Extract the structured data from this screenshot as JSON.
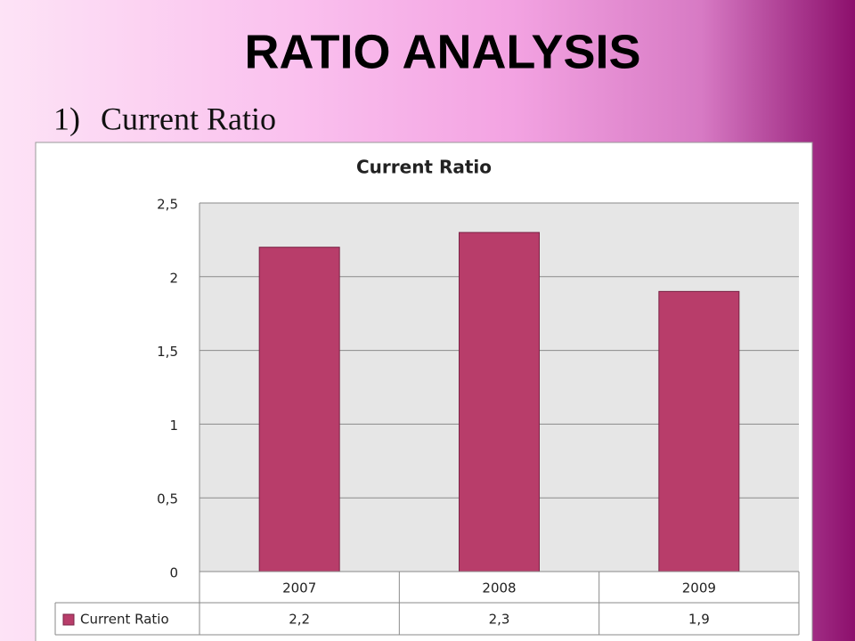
{
  "slide": {
    "title": "RATIO ANALYSIS",
    "list_number": "1)",
    "list_text": "Current Ratio"
  },
  "chart_data": {
    "type": "bar",
    "title": "Current Ratio",
    "categories": [
      "2007",
      "2008",
      "2009"
    ],
    "series": [
      {
        "name": "Current Ratio",
        "color": "#b83d6a",
        "values": [
          2.2,
          2.3,
          1.9
        ],
        "value_labels": [
          "2,2",
          "2,3",
          "1,9"
        ]
      }
    ],
    "ylim": [
      0,
      2.5
    ],
    "yticks": [
      0,
      {
        "value": 0.5,
        "label": "0,5"
      },
      1,
      {
        "value": 1.5,
        "label": "1,5"
      },
      2,
      {
        "value": 2.5,
        "label": "2,5"
      }
    ],
    "grid": true
  }
}
